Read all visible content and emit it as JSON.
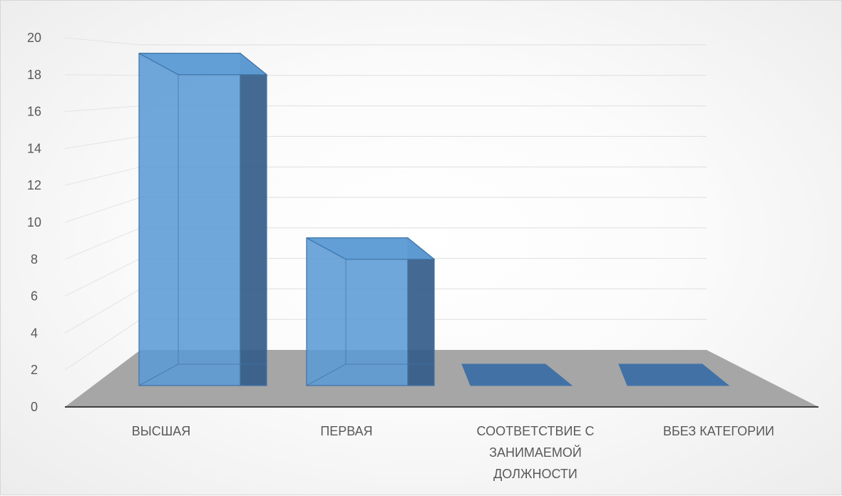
{
  "chart_data": {
    "type": "bar",
    "title": "",
    "xlabel": "",
    "ylabel": "",
    "categories": [
      "ВЫСШАЯ",
      "ПЕРВАЯ",
      "СООТВЕТСТВИЕ С ЗАНИМАЕМОЙ ДОЛЖНОСТИ",
      "ВБЕЗ КАТЕГОРИИ"
    ],
    "series": [
      {
        "values": [
          18,
          8,
          0,
          0
        ],
        "color": "#5b9bd5"
      }
    ],
    "ylim": [
      0,
      20
    ],
    "yticks": [
      "0",
      "2",
      "4",
      "6",
      "8",
      "10",
      "12",
      "14",
      "16",
      "18",
      "20"
    ],
    "grid": true,
    "legend": "none",
    "style": "3d-column"
  }
}
